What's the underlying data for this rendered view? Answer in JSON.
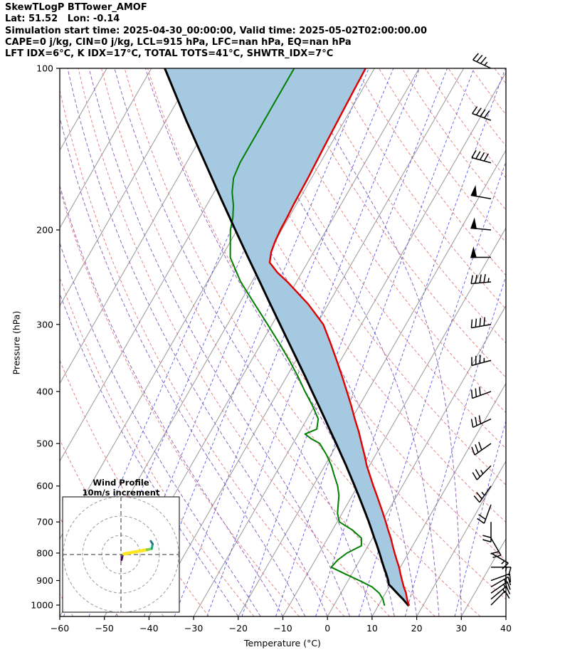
{
  "header": {
    "line1": "SkewTLogP BTTower_AMOF",
    "line2": "Lat: 51.52   Lon: -0.14",
    "line3": "Simulation start time: 2025-04-30_00:00:00, Valid time: 2025-05-02T02:00:00.00",
    "line4": "CAPE=0 j/kg, CIN=0 j/kg, LCL=915 hPa, LFC=nan hPa, EQ=nan hPa",
    "line5": "LFT IDX=6°C, K IDX=17°C, TOTAL TOTS=41°C, SHWTR_IDX=7°C"
  },
  "chart_data": {
    "type": "line",
    "subtype": "skew-t-log-p",
    "title": "SkewTLogP BTTower_AMOF",
    "station": {
      "name": "BTTower_AMOF",
      "lat": 51.52,
      "lon": -0.14
    },
    "times": {
      "simulation_start": "2025-04-30_00:00:00",
      "valid": "2025-05-02T02:00:00.00"
    },
    "indices": {
      "CAPE_j_kg": 0,
      "CIN_j_kg": 0,
      "LCL_hPa": 915,
      "LFC_hPa": "nan",
      "EQ_hPa": "nan",
      "LFT_IDX_C": 6,
      "K_IDX_C": 17,
      "TOTAL_TOTS_C": 41,
      "SHWTR_IDX_C": 7
    },
    "xlabel": "Temperature (°C)",
    "ylabel": "Pressure (hPa)",
    "xlim": [
      -60,
      40
    ],
    "ylim": [
      1050,
      100
    ],
    "y_scale": "log",
    "skew_factor_c_per_ln_p": 30,
    "grid": "skewed isotherms, dry/moist adiabats, mixing-ratio lines",
    "pressure_ticks": [
      100,
      200,
      300,
      400,
      500,
      600,
      700,
      800,
      900,
      1000
    ],
    "temp_ticks": [
      -60,
      -50,
      -40,
      -30,
      -20,
      -10,
      0,
      10,
      20,
      30,
      40
    ],
    "isotherms_c": [
      -120,
      -110,
      -100,
      -90,
      -80,
      -70,
      -60,
      -50,
      -40,
      -30,
      -20,
      -10,
      0,
      10,
      20,
      30,
      40
    ],
    "dry_adiabats_theta_c": [
      -60,
      -50,
      -40,
      -30,
      -20,
      -10,
      0,
      10,
      20,
      30,
      40,
      50,
      60,
      70,
      80,
      90,
      100,
      110,
      120,
      130,
      140,
      150,
      160,
      170,
      180,
      190,
      200
    ],
    "moist_adiabats_thetaw_c": [
      -20,
      -15,
      -10,
      -5,
      0,
      5,
      10,
      15,
      20,
      25,
      30
    ],
    "mixing_ratio_g_kg": [
      0.0125,
      0.025,
      0.05,
      0.1,
      0.2,
      0.4,
      0.8,
      1.5,
      3,
      6,
      12,
      24,
      48
    ],
    "colors": {
      "isotherm": "#a0a0a0",
      "dry_adiabat": "#e07a7a",
      "moist_adiabat": "#9467bd",
      "mixing_ratio": "#5b5bdd",
      "frame": "#000000"
    },
    "series": [
      {
        "name": "temperature",
        "color": "#e00000",
        "width": 2.4,
        "pressure_hpa": [
          1000,
          975,
          950,
          925,
          900,
          875,
          850,
          825,
          800,
          775,
          750,
          725,
          700,
          675,
          650,
          625,
          600,
          575,
          550,
          525,
          500,
          475,
          450,
          425,
          400,
          375,
          350,
          325,
          300,
          275,
          250,
          240,
          230,
          220,
          210,
          200,
          190,
          180,
          170,
          160,
          150,
          140,
          130,
          120,
          110,
          100
        ],
        "temp_c": [
          16.8,
          15.6,
          14.6,
          13.3,
          12.1,
          10.9,
          9.7,
          8.3,
          6.9,
          5.5,
          4.1,
          2.5,
          0.9,
          -0.8,
          -2.6,
          -4.5,
          -6.5,
          -8.5,
          -10.6,
          -12.5,
          -14.6,
          -16.8,
          -19.3,
          -21.8,
          -24.6,
          -27.6,
          -30.9,
          -34.5,
          -38.5,
          -44.5,
          -52.0,
          -55.5,
          -58.5,
          -59.5,
          -60.0,
          -60.3,
          -60.4,
          -60.6,
          -60.7,
          -60.8,
          -61.0,
          -61.2,
          -61.4,
          -61.6,
          -61.8,
          -62.0
        ]
      },
      {
        "name": "dewpoint",
        "color": "#008000",
        "width": 2,
        "pressure_hpa": [
          1000,
          975,
          950,
          925,
          900,
          875,
          850,
          825,
          800,
          775,
          750,
          725,
          700,
          675,
          650,
          625,
          600,
          575,
          550,
          525,
          500,
          490,
          480,
          470,
          450,
          425,
          400,
          375,
          350,
          325,
          300,
          275,
          250,
          225,
          200,
          190,
          180,
          170,
          160,
          150,
          140,
          130,
          120,
          110,
          100
        ],
        "temp_c": [
          11.3,
          10.2,
          8.6,
          6.2,
          2.5,
          -1.5,
          -5.5,
          -5.0,
          -3.8,
          -1.5,
          -2.5,
          -5.5,
          -9.5,
          -11.0,
          -12.0,
          -13.0,
          -14.5,
          -16.5,
          -18.5,
          -21.0,
          -24.0,
          -26.5,
          -28.5,
          -26.5,
          -27.5,
          -30.5,
          -34.0,
          -37.5,
          -41.5,
          -46.0,
          -51.0,
          -56.5,
          -62.5,
          -68.0,
          -71.5,
          -72.5,
          -74.0,
          -76.0,
          -77.5,
          -78.0,
          -78.0,
          -78.0,
          -78.0,
          -78.0,
          -78.0
        ]
      },
      {
        "name": "parcel",
        "color": "#000000",
        "width": 3,
        "pressure_hpa": [
          1000,
          975,
          950,
          925,
          915,
          900,
          875,
          850,
          825,
          800,
          775,
          750,
          725,
          700,
          675,
          650,
          625,
          600,
          575,
          550,
          525,
          500,
          475,
          450,
          425,
          400,
          375,
          350,
          325,
          300,
          275,
          250,
          225,
          200,
          175,
          150,
          125,
          100
        ],
        "temp_c": [
          16.6,
          14.7,
          12.6,
          10.5,
          9.6,
          9.0,
          7.7,
          6.3,
          4.9,
          3.5,
          2.0,
          0.4,
          -1.2,
          -2.9,
          -4.7,
          -6.6,
          -8.6,
          -10.7,
          -12.9,
          -15.2,
          -17.7,
          -20.3,
          -23.1,
          -26.0,
          -29.1,
          -32.4,
          -35.9,
          -39.7,
          -43.8,
          -48.2,
          -53.0,
          -58.2,
          -64.0,
          -70.4,
          -77.6,
          -85.8,
          -95.5,
          -107.0
        ]
      }
    ],
    "shading": {
      "between": [
        "parcel",
        "temperature"
      ],
      "color": "#a6c9e2"
    },
    "wind_barbs": {
      "units": "kt",
      "levels": [
        {
          "p": 1000,
          "speed_kt": 12,
          "dir_deg": 45
        },
        {
          "p": 975,
          "speed_kt": 15,
          "dir_deg": 50
        },
        {
          "p": 950,
          "speed_kt": 15,
          "dir_deg": 55
        },
        {
          "p": 925,
          "speed_kt": 18,
          "dir_deg": 60
        },
        {
          "p": 900,
          "speed_kt": 18,
          "dir_deg": 70
        },
        {
          "p": 850,
          "speed_kt": 15,
          "dir_deg": 90
        },
        {
          "p": 800,
          "speed_kt": 15,
          "dir_deg": 120
        },
        {
          "p": 750,
          "speed_kt": 18,
          "dir_deg": 150
        },
        {
          "p": 700,
          "speed_kt": 20,
          "dir_deg": 180
        },
        {
          "p": 650,
          "speed_kt": 22,
          "dir_deg": 200
        },
        {
          "p": 600,
          "speed_kt": 25,
          "dir_deg": 215
        },
        {
          "p": 550,
          "speed_kt": 25,
          "dir_deg": 225
        },
        {
          "p": 500,
          "speed_kt": 28,
          "dir_deg": 235
        },
        {
          "p": 450,
          "speed_kt": 30,
          "dir_deg": 245
        },
        {
          "p": 400,
          "speed_kt": 32,
          "dir_deg": 250
        },
        {
          "p": 350,
          "speed_kt": 35,
          "dir_deg": 255
        },
        {
          "p": 300,
          "speed_kt": 40,
          "dir_deg": 260
        },
        {
          "p": 250,
          "speed_kt": 45,
          "dir_deg": 265
        },
        {
          "p": 225,
          "speed_kt": 50,
          "dir_deg": 270
        },
        {
          "p": 200,
          "speed_kt": 52,
          "dir_deg": 275
        },
        {
          "p": 175,
          "speed_kt": 48,
          "dir_deg": 280
        },
        {
          "p": 150,
          "speed_kt": 42,
          "dir_deg": 285
        },
        {
          "p": 125,
          "speed_kt": 38,
          "dir_deg": 290
        },
        {
          "p": 100,
          "speed_kt": 35,
          "dir_deg": 295
        }
      ]
    },
    "inset": {
      "title": "Wind Profile",
      "subtitle": "10m/s increment",
      "ring_interval_ms": 10,
      "rings_ms": [
        10,
        20,
        30
      ],
      "trace_segments_ms": [
        {
          "u1": 0.3,
          "v1": -2.8,
          "u2": 0.8,
          "v2": -0.6,
          "color": "#440154",
          "w": 3
        },
        {
          "u1": 0.8,
          "v1": -0.6,
          "u2": 1.5,
          "v2": 0.3,
          "color": "#46327e",
          "w": 3
        },
        {
          "u1": 1.5,
          "v1": 0.3,
          "u2": 13.5,
          "v2": 2.5,
          "color": "#fde725",
          "w": 4.5
        },
        {
          "u1": 13.5,
          "v1": 2.5,
          "u2": 16.0,
          "v2": 3.0,
          "color": "#7ad151",
          "w": 3.5
        },
        {
          "u1": 16.0,
          "v1": 3.0,
          "u2": 16.5,
          "v2": 5.5,
          "color": "#22a884",
          "w": 3
        },
        {
          "u1": 16.5,
          "v1": 5.5,
          "u2": 15.5,
          "v2": 7.0,
          "color": "#2a788e",
          "w": 3
        }
      ]
    }
  }
}
